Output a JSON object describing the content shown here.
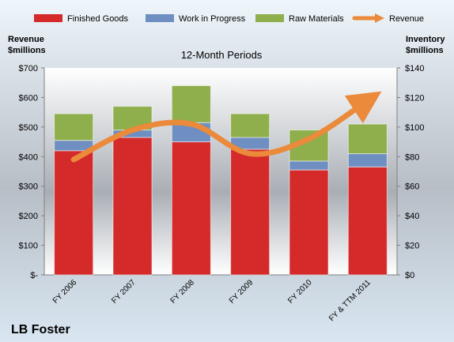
{
  "chart_data": {
    "type": "bar",
    "subtitle": "12-Month Periods",
    "company": "LB Foster",
    "categories": [
      "FY 2006",
      "FY 2007",
      "FY 2008",
      "FY 2009",
      "FY 2010",
      "FY & TTM 2011"
    ],
    "left_axis": {
      "title_line1": "Revenue",
      "title_line2": "$millions",
      "ylim": [
        0,
        700
      ],
      "ticks": [
        0,
        100,
        200,
        300,
        400,
        500,
        600,
        700
      ],
      "tick_labels": [
        "$-",
        "$100",
        "$200",
        "$300",
        "$400",
        "$500",
        "$600",
        "$700"
      ]
    },
    "right_axis": {
      "title_line1": "Inventory",
      "title_line2": "$millions",
      "ylim": [
        0,
        140
      ],
      "ticks": [
        0,
        20,
        40,
        60,
        80,
        100,
        120,
        140
      ],
      "tick_labels": [
        "$0",
        "$20",
        "$40",
        "$60",
        "$80",
        "$100",
        "$120",
        "$140"
      ]
    },
    "series": [
      {
        "name": "Finished Goods",
        "axis": "right",
        "kind": "stacked-bar",
        "color": "#d42a2a",
        "values": [
          84,
          93,
          90,
          85,
          71,
          73
        ]
      },
      {
        "name": "Work in Progress",
        "axis": "right",
        "kind": "stacked-bar",
        "color": "#6f8fc2",
        "values": [
          7,
          5,
          13,
          8,
          6,
          9
        ]
      },
      {
        "name": "Raw Materials",
        "axis": "right",
        "kind": "stacked-bar",
        "color": "#8fae4c",
        "values": [
          18,
          16,
          25,
          16,
          21,
          20
        ]
      },
      {
        "name": "Revenue",
        "axis": "left",
        "kind": "line",
        "color": "#ea8a3a",
        "values": [
          390,
          490,
          510,
          410,
          460,
          590
        ]
      }
    ],
    "legend_placement": "top",
    "grid": false
  }
}
